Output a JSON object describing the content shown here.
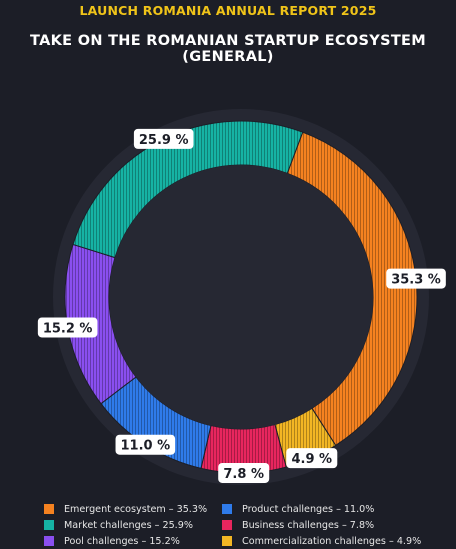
{
  "report_title": "LAUNCH ROMANIA ANNUAL REPORT 2025",
  "chart_data": {
    "type": "pie",
    "variant": "donut",
    "title": "TAKE ON THE ROMANIAN STARTUP ECOSYSTEM (GENERAL)",
    "slices": [
      {
        "name": "Emergent ecosystem",
        "value": 35.3,
        "label": "35.3 %",
        "legend": "Emergent ecosystem – 35.3%",
        "color": "#f58220"
      },
      {
        "name": "Commercialization challenges",
        "value": 4.9,
        "label": "4.9 %",
        "legend": "Commercialization challenges – 4.9%",
        "color": "#f2b624"
      },
      {
        "name": "Business challenges",
        "value": 7.8,
        "label": "7.8 %",
        "legend": "Business challenges – 7.8%",
        "color": "#e8265e"
      },
      {
        "name": "Product challenges",
        "value": 11.0,
        "label": "11.0 %",
        "legend": "Product challenges – 11.0%",
        "color": "#2f7bea"
      },
      {
        "name": "Pool challenges",
        "value": 15.2,
        "label": "15.2 %",
        "legend": "Pool challenges – 15.2%",
        "color": "#8a4ff0"
      },
      {
        "name": "Market challenges",
        "value": 25.9,
        "label": "25.9 %",
        "legend": "Market challenges – 25.9%",
        "color": "#16b3a4"
      }
    ],
    "legend_order": [
      "Emergent ecosystem",
      "Product challenges",
      "Market challenges",
      "Business challenges",
      "Pool challenges",
      "Commercialization challenges"
    ],
    "legend_placement": "bottom",
    "direction": "clockwise"
  }
}
